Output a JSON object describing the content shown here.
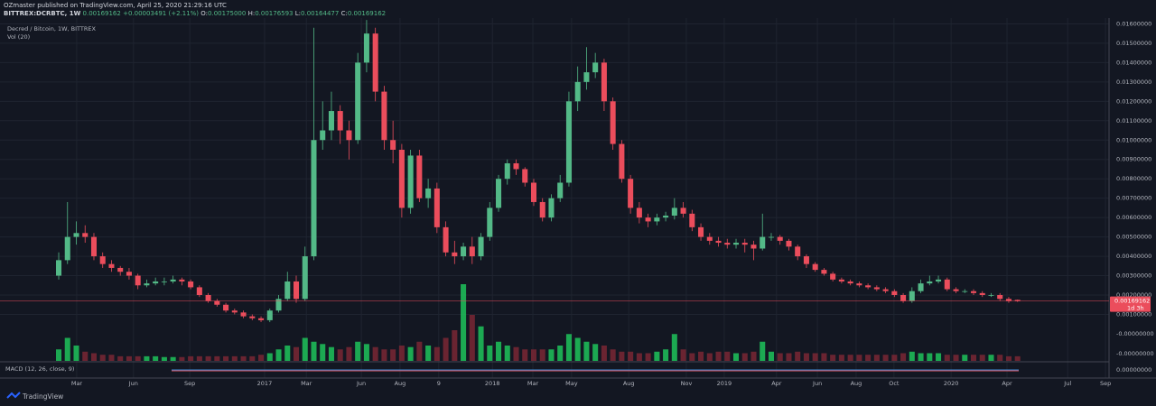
{
  "header": {
    "author_line": "OZmaster published on TradingView.com, April 25, 2020 21:29:16 UTC",
    "symbol": "BITTREX:DCRBTC, 1W",
    "last": "0.00169162",
    "change": "+0.00003491 (+2.11%)",
    "ohlc": [
      {
        "label": "O:",
        "value": "0.00175000"
      },
      {
        "label": "H:",
        "value": "0.00176593"
      },
      {
        "label": "L:",
        "value": "0.00164477"
      },
      {
        "label": "C:",
        "value": "0.00169162"
      }
    ]
  },
  "footer": "TradingView",
  "chart_data": {
    "type": "candlestick",
    "legend": [
      "Decred / Bitcoin, 1W, BITTREX",
      "Vol (20)"
    ],
    "macd_label": "MACD (12, 26, close, 9)",
    "up_color": "#53b987",
    "down_color": "#eb4d5c",
    "volume_up_color": "#1fc35a",
    "volume_down_color": "#7a2734",
    "grid": true,
    "xlim": [
      -13.35,
      238.8
    ],
    "ylim": [
      -0.0014,
      0.0163
    ],
    "volume_lim": [
      0,
      100
    ],
    "xticks": [
      {
        "value": 4.1,
        "label": "Mar"
      },
      {
        "value": 17.0,
        "label": "Jun"
      },
      {
        "value": 29.8,
        "label": "Sep"
      },
      {
        "value": 46.8,
        "label": "2017"
      },
      {
        "value": 56.3,
        "label": "Mar"
      },
      {
        "value": 68.8,
        "label": "Jun"
      },
      {
        "value": 77.6,
        "label": "Aug"
      },
      {
        "value": 86.4,
        "label": "9"
      },
      {
        "value": 98.6,
        "label": "2018"
      },
      {
        "value": 107.8,
        "label": "Mar"
      },
      {
        "value": 116.6,
        "label": "May"
      },
      {
        "value": 129.6,
        "label": "Aug"
      },
      {
        "value": 142.7,
        "label": "Nov"
      },
      {
        "value": 151.3,
        "label": "2019"
      },
      {
        "value": 163.2,
        "label": "Apr"
      },
      {
        "value": 172.5,
        "label": "Jun"
      },
      {
        "value": 181.3,
        "label": "Aug"
      },
      {
        "value": 189.9,
        "label": "Oct"
      },
      {
        "value": 202.9,
        "label": "2020"
      },
      {
        "value": 215.6,
        "label": "Apr"
      },
      {
        "value": 229.4,
        "label": "Jul"
      },
      {
        "value": 238.0,
        "label": "Sep"
      }
    ],
    "yticks": [
      {
        "value": 0.001,
        "label": "0.00100000"
      },
      {
        "value": 0.002,
        "label": "0.00200000"
      },
      {
        "value": 0.003,
        "label": "0.00300000"
      },
      {
        "value": 0.004,
        "label": "0.00400000"
      },
      {
        "value": 0.005,
        "label": "0.00500000"
      },
      {
        "value": 0.006,
        "label": "0.00600000"
      },
      {
        "value": 0.007,
        "label": "0.00700000"
      },
      {
        "value": 0.008,
        "label": "0.00800000"
      },
      {
        "value": 0.009,
        "label": "0.00900000"
      },
      {
        "value": 0.01,
        "label": "0.01000000"
      },
      {
        "value": 0.011,
        "label": "0.01100000"
      },
      {
        "value": 0.012,
        "label": "0.01200000"
      },
      {
        "value": 0.013,
        "label": "0.01300000"
      },
      {
        "value": 0.014,
        "label": "0.01400000"
      },
      {
        "value": 0.015,
        "label": "0.01500000"
      },
      {
        "value": 0.016,
        "label": "0.01600000"
      }
    ],
    "volume_axis_labels": [
      "-0.00000000",
      "-0.00000000"
    ],
    "macd_axis_label": "0.00000000",
    "last_price": 0.00169162,
    "last_price_label": "0.00169162",
    "countdown": "1d 3h",
    "x": [
      0,
      2,
      4,
      6,
      8,
      10,
      12,
      14,
      16,
      18,
      20,
      22,
      24,
      26,
      28,
      30,
      32,
      34,
      36,
      38,
      40,
      42,
      44,
      46,
      48,
      50,
      52,
      54,
      56,
      58,
      60,
      62,
      64,
      66,
      68,
      70,
      72,
      74,
      76,
      78,
      80,
      82,
      84,
      86,
      88,
      90,
      92,
      94,
      96,
      98,
      100,
      102,
      104,
      106,
      108,
      110,
      112,
      114,
      116,
      118,
      120,
      122,
      124,
      126,
      128,
      130,
      132,
      134,
      136,
      138,
      140,
      142,
      144,
      146,
      148,
      150,
      152,
      154,
      156,
      158,
      160,
      162,
      164,
      166,
      168,
      170,
      172,
      174,
      176,
      178,
      180,
      182,
      184,
      186,
      188,
      190,
      192,
      194,
      196,
      198,
      200,
      202,
      204,
      206,
      208,
      210,
      212,
      214,
      216,
      218
    ],
    "open": [
      0.003,
      0.0038,
      0.005,
      0.0052,
      0.005,
      0.004,
      0.0036,
      0.0034,
      0.0032,
      0.003,
      0.0025,
      0.0026,
      0.0027,
      0.0027,
      0.0028,
      0.0027,
      0.0024,
      0.002,
      0.0017,
      0.0015,
      0.0012,
      0.0011,
      0.0009,
      0.0008,
      0.0007,
      0.0012,
      0.0018,
      0.0027,
      0.0018,
      0.004,
      0.01,
      0.0105,
      0.0115,
      0.0105,
      0.01,
      0.014,
      0.0155,
      0.0125,
      0.01,
      0.0095,
      0.0065,
      0.0092,
      0.007,
      0.0075,
      0.0055,
      0.0042,
      0.004,
      0.0045,
      0.004,
      0.005,
      0.0065,
      0.008,
      0.0088,
      0.0085,
      0.0078,
      0.0068,
      0.006,
      0.007,
      0.0078,
      0.012,
      0.013,
      0.0135,
      0.014,
      0.012,
      0.0098,
      0.008,
      0.0065,
      0.006,
      0.0058,
      0.006,
      0.0061,
      0.0065,
      0.0062,
      0.0055,
      0.005,
      0.0048,
      0.0047,
      0.0046,
      0.0047,
      0.0046,
      0.0044,
      0.005,
      0.005,
      0.0048,
      0.0045,
      0.004,
      0.0036,
      0.0033,
      0.0031,
      0.0028,
      0.0027,
      0.0026,
      0.0025,
      0.0024,
      0.0023,
      0.0022,
      0.002,
      0.0017,
      0.0022,
      0.0026,
      0.0027,
      0.0028,
      0.0023,
      0.0022,
      0.0022,
      0.0021,
      0.002,
      0.002,
      0.0018,
      0.00175
    ],
    "high": [
      0.0042,
      0.0068,
      0.0058,
      0.0056,
      0.0052,
      0.0042,
      0.0038,
      0.0035,
      0.0034,
      0.0031,
      0.0028,
      0.0029,
      0.0029,
      0.003,
      0.0029,
      0.0028,
      0.0025,
      0.0021,
      0.0018,
      0.0016,
      0.0013,
      0.0012,
      0.001,
      0.0009,
      0.0013,
      0.002,
      0.0032,
      0.003,
      0.0045,
      0.0158,
      0.012,
      0.0125,
      0.0118,
      0.011,
      0.0145,
      0.0162,
      0.0158,
      0.0128,
      0.011,
      0.0098,
      0.0095,
      0.0095,
      0.008,
      0.0078,
      0.0058,
      0.0048,
      0.0047,
      0.005,
      0.0052,
      0.0068,
      0.0082,
      0.009,
      0.009,
      0.0086,
      0.008,
      0.007,
      0.0072,
      0.0082,
      0.0125,
      0.0138,
      0.0148,
      0.0145,
      0.0142,
      0.0122,
      0.01,
      0.0082,
      0.0068,
      0.0062,
      0.0062,
      0.0063,
      0.007,
      0.0068,
      0.0064,
      0.0057,
      0.0052,
      0.005,
      0.0049,
      0.0049,
      0.0049,
      0.0048,
      0.0062,
      0.0052,
      0.0051,
      0.0049,
      0.0046,
      0.0041,
      0.0037,
      0.0034,
      0.0032,
      0.0029,
      0.0028,
      0.0027,
      0.0026,
      0.0025,
      0.0024,
      0.0023,
      0.0021,
      0.0024,
      0.0028,
      0.003,
      0.003,
      0.0029,
      0.0024,
      0.0023,
      0.0023,
      0.0022,
      0.0021,
      0.0021,
      0.0019,
      0.00176593
    ],
    "low": [
      0.0028,
      0.0036,
      0.0046,
      0.0047,
      0.0038,
      0.0034,
      0.0032,
      0.003,
      0.0028,
      0.0023,
      0.0024,
      0.0025,
      0.0025,
      0.0026,
      0.0025,
      0.0023,
      0.0019,
      0.0016,
      0.0014,
      0.0011,
      0.001,
      0.0008,
      0.0007,
      0.0006,
      0.0006,
      0.0011,
      0.0017,
      0.0016,
      0.0017,
      0.0038,
      0.0095,
      0.01,
      0.0098,
      0.009,
      0.0098,
      0.0135,
      0.012,
      0.0095,
      0.0088,
      0.006,
      0.0062,
      0.0068,
      0.0065,
      0.0052,
      0.004,
      0.0036,
      0.0038,
      0.0036,
      0.0038,
      0.0048,
      0.0063,
      0.0077,
      0.0082,
      0.0076,
      0.0066,
      0.0058,
      0.0058,
      0.0068,
      0.0076,
      0.0115,
      0.0126,
      0.0132,
      0.0115,
      0.0095,
      0.0078,
      0.0062,
      0.0057,
      0.0055,
      0.0056,
      0.0058,
      0.0059,
      0.006,
      0.0053,
      0.0048,
      0.0046,
      0.0045,
      0.0044,
      0.0044,
      0.0042,
      0.0038,
      0.0043,
      0.0048,
      0.0046,
      0.0043,
      0.0038,
      0.0034,
      0.0032,
      0.003,
      0.0027,
      0.0026,
      0.0025,
      0.0024,
      0.0023,
      0.0022,
      0.0021,
      0.0019,
      0.0016,
      0.0016,
      0.0021,
      0.0025,
      0.0026,
      0.0022,
      0.0021,
      0.0021,
      0.002,
      0.0019,
      0.0019,
      0.0017,
      0.0016,
      0.00164477
    ],
    "close": [
      0.0038,
      0.005,
      0.0052,
      0.005,
      0.004,
      0.0036,
      0.0034,
      0.0032,
      0.003,
      0.0025,
      0.0026,
      0.0027,
      0.0027,
      0.0028,
      0.0027,
      0.0024,
      0.002,
      0.0017,
      0.0015,
      0.0012,
      0.0011,
      0.0009,
      0.0008,
      0.0007,
      0.0012,
      0.0018,
      0.0027,
      0.0018,
      0.004,
      0.01,
      0.0105,
      0.0115,
      0.0105,
      0.01,
      0.014,
      0.0155,
      0.0125,
      0.01,
      0.0095,
      0.0065,
      0.0092,
      0.007,
      0.0075,
      0.0055,
      0.0042,
      0.004,
      0.0045,
      0.004,
      0.005,
      0.0065,
      0.008,
      0.0088,
      0.0085,
      0.0078,
      0.0068,
      0.006,
      0.007,
      0.0078,
      0.012,
      0.013,
      0.0135,
      0.014,
      0.012,
      0.0098,
      0.008,
      0.0065,
      0.006,
      0.0058,
      0.006,
      0.0061,
      0.0065,
      0.0062,
      0.0055,
      0.005,
      0.0048,
      0.0047,
      0.0046,
      0.0047,
      0.0046,
      0.0044,
      0.005,
      0.005,
      0.0048,
      0.0045,
      0.004,
      0.0036,
      0.0033,
      0.0031,
      0.0028,
      0.0027,
      0.0026,
      0.0025,
      0.0024,
      0.0023,
      0.0022,
      0.002,
      0.0017,
      0.0022,
      0.0026,
      0.0027,
      0.0028,
      0.0023,
      0.0022,
      0.0022,
      0.0021,
      0.002,
      0.002,
      0.0018,
      0.0017,
      0.00169162
    ],
    "volume": [
      15,
      30,
      20,
      12,
      10,
      8,
      8,
      6,
      6,
      6,
      6,
      6,
      5,
      5,
      5,
      6,
      6,
      6,
      6,
      6,
      6,
      6,
      6,
      8,
      10,
      15,
      20,
      18,
      30,
      25,
      22,
      18,
      15,
      18,
      25,
      22,
      18,
      15,
      15,
      20,
      18,
      25,
      20,
      18,
      30,
      40,
      100,
      60,
      45,
      20,
      25,
      20,
      18,
      15,
      15,
      15,
      15,
      20,
      35,
      30,
      25,
      22,
      20,
      15,
      12,
      12,
      10,
      10,
      12,
      15,
      35,
      15,
      10,
      12,
      10,
      12,
      12,
      10,
      10,
      12,
      25,
      12,
      10,
      10,
      12,
      10,
      10,
      10,
      8,
      8,
      8,
      8,
      8,
      8,
      8,
      8,
      10,
      12,
      10,
      10,
      10,
      8,
      8,
      8,
      8,
      8,
      8,
      8,
      6,
      6
    ]
  }
}
